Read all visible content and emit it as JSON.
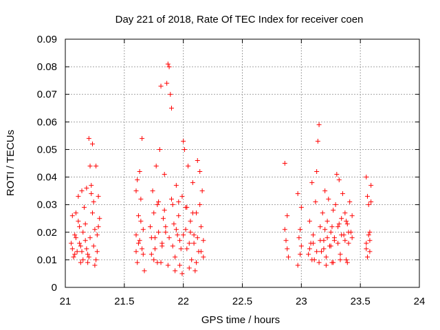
{
  "chart_data": {
    "type": "scatter",
    "title": "Day 221 of 2018, Rate Of TEC Index for receiver coen",
    "xlabel": "GPS time / hours",
    "ylabel": "ROTI / TECUs",
    "xlim": [
      21,
      24
    ],
    "ylim": [
      0,
      0.09
    ],
    "xticks": [
      21,
      21.5,
      22,
      22.5,
      23,
      23.5,
      24
    ],
    "xtick_labels": [
      "21",
      "21.5",
      "22",
      "22.5",
      "23",
      "23.5",
      "24"
    ],
    "yticks": [
      0,
      0.01,
      0.02,
      0.03,
      0.04,
      0.05,
      0.06,
      0.07,
      0.08,
      0.09
    ],
    "ytick_labels": [
      "0",
      "0.01",
      "0.02",
      "0.03",
      "0.04",
      "0.05",
      "0.06",
      "0.07",
      "0.08",
      "0.09"
    ],
    "grid": true,
    "marker": "+",
    "color": "#ff0000",
    "series": [
      {
        "name": "ROTI",
        "points": [
          [
            21.05,
            0.016
          ],
          [
            21.06,
            0.026
          ],
          [
            21.07,
            0.011
          ],
          [
            21.08,
            0.019
          ],
          [
            21.09,
            0.027
          ],
          [
            21.1,
            0.013
          ],
          [
            21.11,
            0.033
          ],
          [
            21.12,
            0.022
          ],
          [
            21.13,
            0.015
          ],
          [
            21.14,
            0.035
          ],
          [
            21.15,
            0.01
          ],
          [
            21.16,
            0.029
          ],
          [
            21.17,
            0.017
          ],
          [
            21.18,
            0.036
          ],
          [
            21.19,
            0.012
          ],
          [
            21.2,
            0.054
          ],
          [
            21.21,
            0.044
          ],
          [
            21.22,
            0.037
          ],
          [
            21.23,
            0.052
          ],
          [
            21.24,
            0.031
          ],
          [
            21.25,
            0.021
          ],
          [
            21.26,
            0.044
          ],
          [
            21.27,
            0.013
          ],
          [
            21.28,
            0.033
          ],
          [
            21.29,
            0.025
          ],
          [
            21.06,
            0.014
          ],
          [
            21.09,
            0.018
          ],
          [
            21.12,
            0.016
          ],
          [
            21.15,
            0.02
          ],
          [
            21.18,
            0.014
          ],
          [
            21.21,
            0.018
          ],
          [
            21.24,
            0.015
          ],
          [
            21.27,
            0.019
          ],
          [
            21.08,
            0.012
          ],
          [
            21.14,
            0.013
          ],
          [
            21.2,
            0.011
          ],
          [
            21.26,
            0.01
          ],
          [
            21.11,
            0.024
          ],
          [
            21.17,
            0.023
          ],
          [
            21.23,
            0.027
          ],
          [
            21.28,
            0.022
          ],
          [
            21.13,
            0.009
          ],
          [
            21.19,
            0.009
          ],
          [
            21.25,
            0.008
          ],
          [
            21.22,
            0.034
          ],
          [
            21.6,
            0.035
          ],
          [
            21.61,
            0.039
          ],
          [
            21.62,
            0.016
          ],
          [
            21.63,
            0.042
          ],
          [
            21.64,
            0.024
          ],
          [
            21.65,
            0.054
          ],
          [
            21.66,
            0.012
          ],
          [
            21.67,
            0.006
          ],
          [
            21.6,
            0.019
          ],
          [
            21.61,
            0.009
          ],
          [
            21.62,
            0.026
          ],
          [
            21.64,
            0.032
          ],
          [
            21.65,
            0.014
          ],
          [
            21.66,
            0.021
          ],
          [
            21.6,
            0.013
          ],
          [
            21.63,
            0.017
          ],
          [
            21.72,
            0.022
          ],
          [
            21.73,
            0.012
          ],
          [
            21.74,
            0.035
          ],
          [
            21.75,
            0.027
          ],
          [
            21.76,
            0.018
          ],
          [
            21.77,
            0.044
          ],
          [
            21.78,
            0.009
          ],
          [
            21.79,
            0.031
          ],
          [
            21.8,
            0.05
          ],
          [
            21.81,
            0.073
          ],
          [
            21.82,
            0.015
          ],
          [
            21.83,
            0.025
          ],
          [
            21.84,
            0.041
          ],
          [
            21.85,
            0.02
          ],
          [
            21.86,
            0.074
          ],
          [
            21.87,
            0.081
          ],
          [
            21.88,
            0.08
          ],
          [
            21.89,
            0.07
          ],
          [
            21.9,
            0.065
          ],
          [
            21.91,
            0.03
          ],
          [
            21.92,
            0.023
          ],
          [
            21.93,
            0.011
          ],
          [
            21.94,
            0.037
          ],
          [
            21.95,
            0.019
          ],
          [
            21.96,
            0.026
          ],
          [
            21.97,
            0.008
          ],
          [
            21.98,
            0.014
          ],
          [
            21.99,
            0.033
          ],
          [
            22.0,
            0.053
          ],
          [
            22.01,
            0.05
          ],
          [
            22.02,
            0.021
          ],
          [
            22.03,
            0.029
          ],
          [
            22.04,
            0.044
          ],
          [
            22.05,
            0.016
          ],
          [
            22.06,
            0.024
          ],
          [
            22.07,
            0.01
          ],
          [
            22.08,
            0.038
          ],
          [
            22.09,
            0.019
          ],
          [
            22.1,
            0.006
          ],
          [
            22.11,
            0.027
          ],
          [
            22.12,
            0.046
          ],
          [
            22.13,
            0.013
          ],
          [
            22.14,
            0.042
          ],
          [
            22.15,
            0.022
          ],
          [
            22.16,
            0.035
          ],
          [
            22.17,
            0.017
          ],
          [
            21.73,
            0.018
          ],
          [
            21.76,
            0.014
          ],
          [
            21.79,
            0.02
          ],
          [
            21.82,
            0.016
          ],
          [
            21.85,
            0.022
          ],
          [
            21.88,
            0.018
          ],
          [
            21.91,
            0.015
          ],
          [
            21.94,
            0.021
          ],
          [
            21.97,
            0.017
          ],
          [
            22.0,
            0.019
          ],
          [
            22.03,
            0.014
          ],
          [
            22.06,
            0.02
          ],
          [
            22.09,
            0.016
          ],
          [
            22.12,
            0.018
          ],
          [
            22.15,
            0.013
          ],
          [
            21.75,
            0.01
          ],
          [
            21.81,
            0.009
          ],
          [
            21.87,
            0.008
          ],
          [
            21.93,
            0.006
          ],
          [
            21.99,
            0.005
          ],
          [
            22.05,
            0.007
          ],
          [
            22.11,
            0.009
          ],
          [
            22.17,
            0.011
          ],
          [
            21.78,
            0.03
          ],
          [
            21.84,
            0.028
          ],
          [
            21.9,
            0.032
          ],
          [
            21.96,
            0.031
          ],
          [
            22.02,
            0.029
          ],
          [
            22.08,
            0.027
          ],
          [
            22.14,
            0.03
          ],
          [
            22.86,
            0.045
          ],
          [
            22.87,
            0.017
          ],
          [
            22.88,
            0.014
          ],
          [
            22.89,
            0.011
          ],
          [
            22.86,
            0.021
          ],
          [
            22.88,
            0.026
          ],
          [
            22.97,
            0.034
          ],
          [
            22.98,
            0.018
          ],
          [
            22.99,
            0.012
          ],
          [
            23.0,
            0.029
          ],
          [
            22.97,
            0.008
          ],
          [
            22.99,
            0.021
          ],
          [
            23.0,
            0.015
          ],
          [
            23.06,
            0.012
          ],
          [
            23.07,
            0.024
          ],
          [
            23.08,
            0.016
          ],
          [
            23.09,
            0.038
          ],
          [
            23.1,
            0.019
          ],
          [
            23.11,
            0.01
          ],
          [
            23.12,
            0.031
          ],
          [
            23.13,
            0.042
          ],
          [
            23.14,
            0.053
          ],
          [
            23.15,
            0.059
          ],
          [
            23.16,
            0.022
          ],
          [
            23.17,
            0.013
          ],
          [
            23.18,
            0.027
          ],
          [
            23.19,
            0.017
          ],
          [
            23.2,
            0.035
          ],
          [
            23.21,
            0.011
          ],
          [
            23.22,
            0.024
          ],
          [
            23.23,
            0.032
          ],
          [
            23.24,
            0.015
          ],
          [
            23.25,
            0.02
          ],
          [
            23.26,
            0.009
          ],
          [
            23.27,
            0.028
          ],
          [
            23.28,
            0.018
          ],
          [
            23.29,
            0.03
          ],
          [
            23.3,
            0.041
          ],
          [
            23.31,
            0.022
          ],
          [
            23.32,
            0.039
          ],
          [
            23.33,
            0.012
          ],
          [
            23.34,
            0.025
          ],
          [
            23.35,
            0.034
          ],
          [
            23.36,
            0.019
          ],
          [
            23.37,
            0.027
          ],
          [
            23.38,
            0.01
          ],
          [
            23.39,
            0.023
          ],
          [
            23.4,
            0.016
          ],
          [
            23.41,
            0.031
          ],
          [
            23.42,
            0.02
          ],
          [
            23.43,
            0.026
          ],
          [
            23.07,
            0.014
          ],
          [
            23.1,
            0.016
          ],
          [
            23.13,
            0.013
          ],
          [
            23.16,
            0.017
          ],
          [
            23.19,
            0.014
          ],
          [
            23.22,
            0.018
          ],
          [
            23.25,
            0.015
          ],
          [
            23.28,
            0.017
          ],
          [
            23.31,
            0.016
          ],
          [
            23.34,
            0.019
          ],
          [
            23.37,
            0.017
          ],
          [
            23.4,
            0.02
          ],
          [
            23.43,
            0.018
          ],
          [
            23.09,
            0.01
          ],
          [
            23.15,
            0.009
          ],
          [
            23.21,
            0.008
          ],
          [
            23.27,
            0.009
          ],
          [
            23.33,
            0.01
          ],
          [
            23.39,
            0.009
          ],
          [
            23.2,
            0.021
          ],
          [
            23.26,
            0.022
          ],
          [
            23.32,
            0.023
          ],
          [
            23.38,
            0.024
          ],
          [
            23.55,
            0.04
          ],
          [
            23.56,
            0.033
          ],
          [
            23.57,
            0.019
          ],
          [
            23.58,
            0.013
          ],
          [
            23.59,
            0.037
          ],
          [
            23.55,
            0.016
          ],
          [
            23.56,
            0.011
          ],
          [
            23.57,
            0.03
          ],
          [
            23.58,
            0.02
          ],
          [
            23.59,
            0.031
          ],
          [
            23.55,
            0.014
          ],
          [
            23.58,
            0.017
          ]
        ]
      }
    ]
  }
}
